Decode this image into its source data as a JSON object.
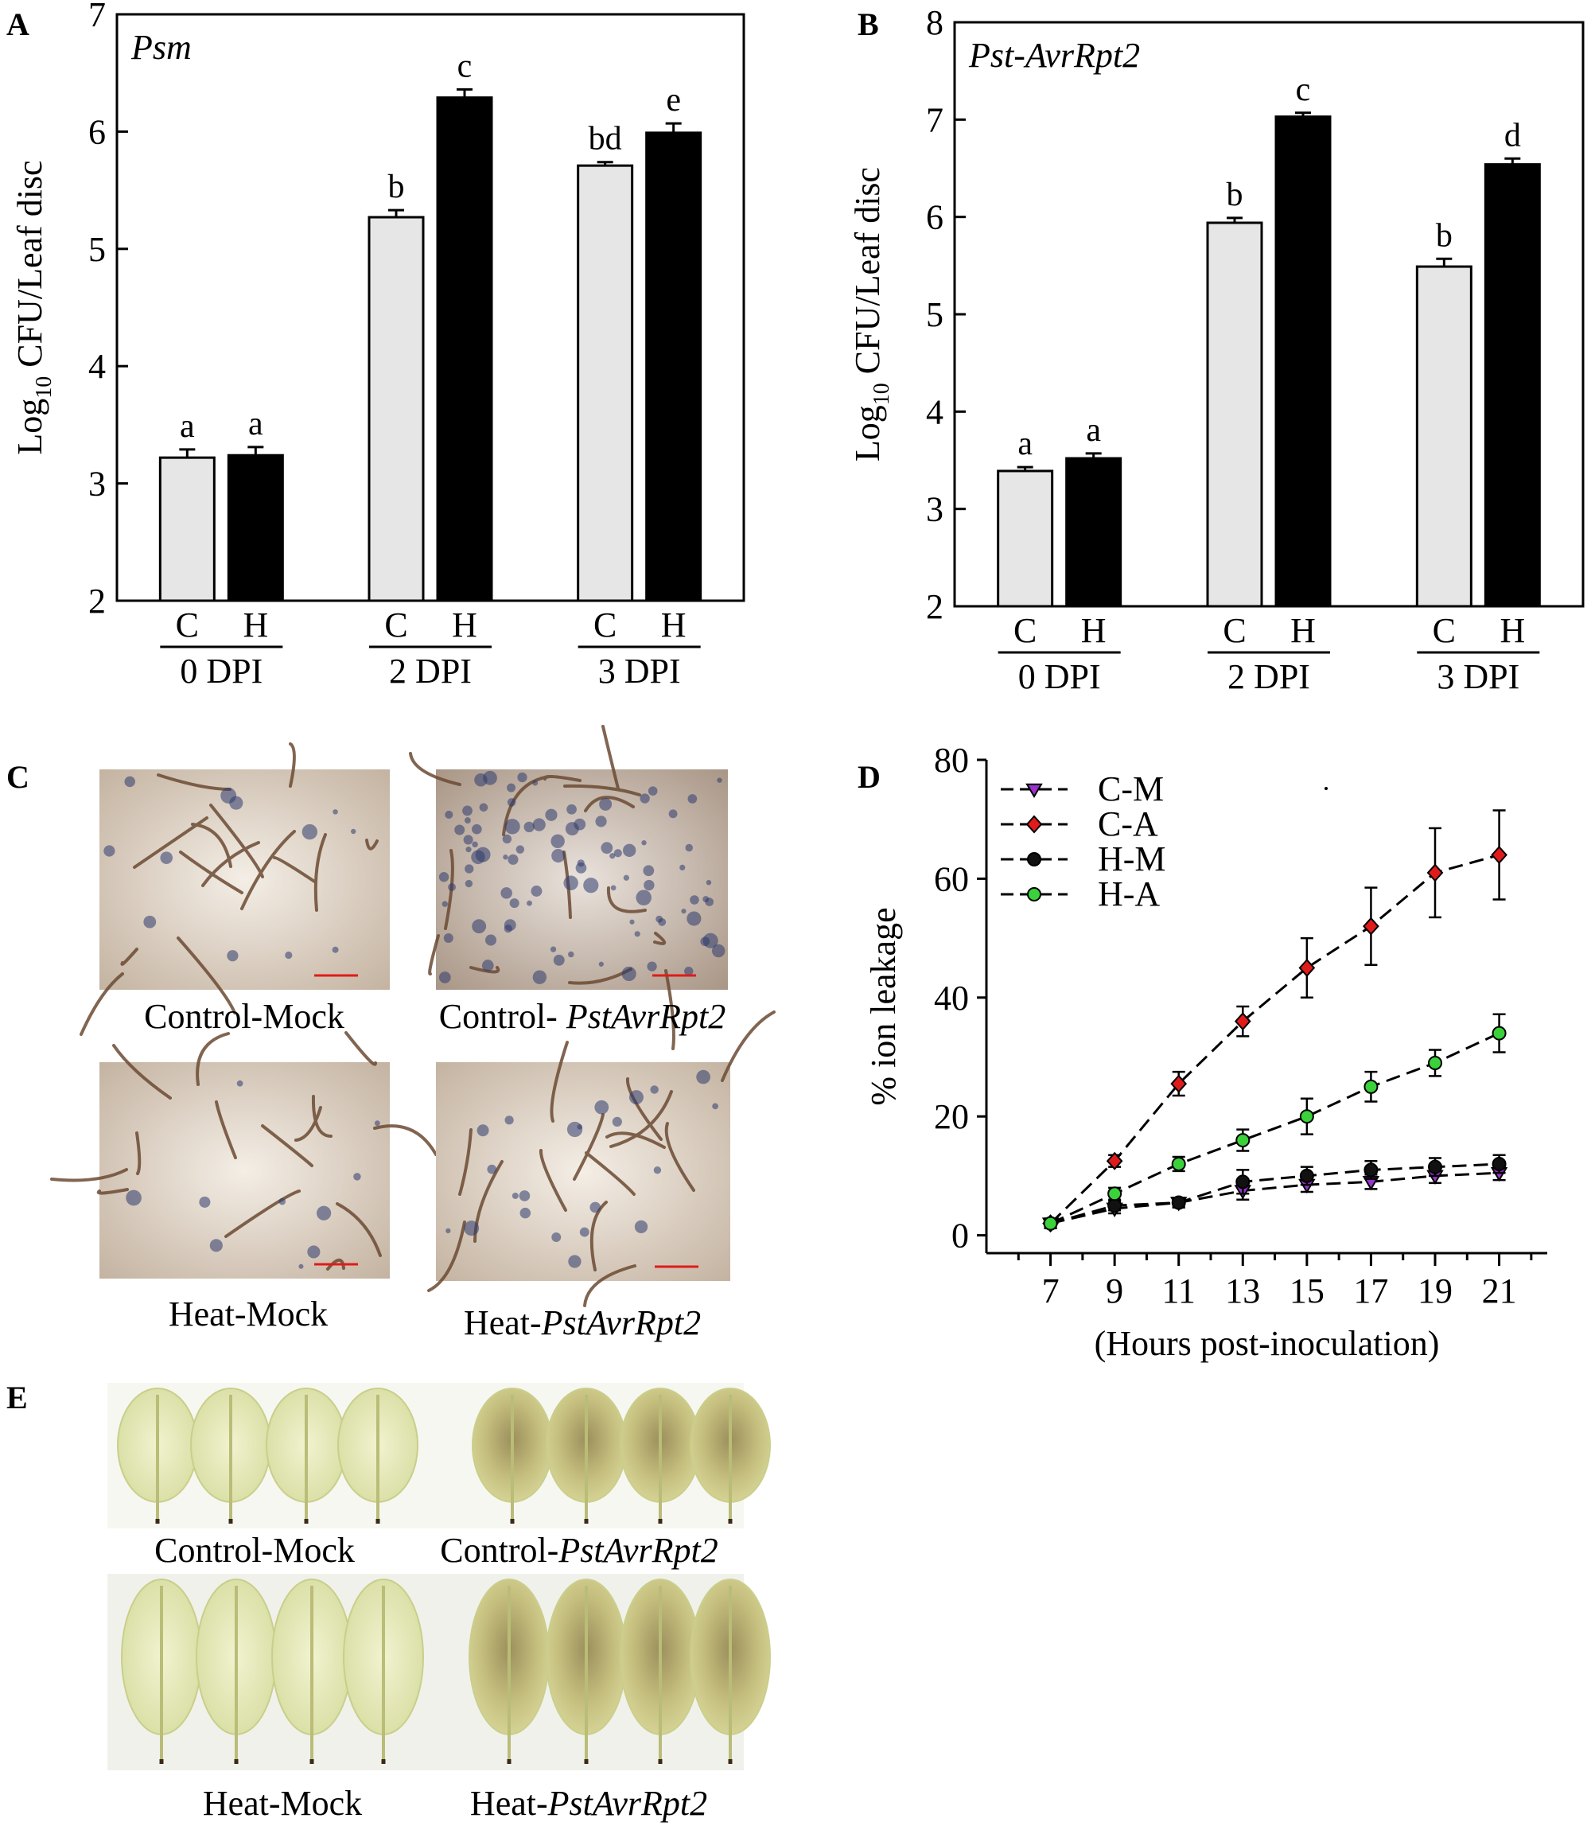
{
  "colors": {
    "control_bar": "#e6e6e6",
    "heat_bar": "#000000",
    "c_m": "#9933cc",
    "c_a": "#e01b1b",
    "h_m": "#111111",
    "h_a": "#3ad13a"
  },
  "chart_data": [
    {
      "panel": "A",
      "type": "bar",
      "annotation": "Psm",
      "ylabel_main": "Log",
      "ylabel_sub": "10",
      "ylabel_rest": " CFU/Leaf disc",
      "ylim": [
        2,
        7
      ],
      "yticks": [
        "2",
        "3",
        "4",
        "5",
        "6",
        "7"
      ],
      "groups": [
        {
          "name": "0 DPI",
          "bars": [
            {
              "label": "C",
              "value": 3.22,
              "error": 0.07,
              "letter": "a",
              "color": "#e6e6e6"
            },
            {
              "label": "H",
              "value": 3.24,
              "error": 0.07,
              "letter": "a",
              "color": "#000000"
            }
          ]
        },
        {
          "name": "2 DPI",
          "bars": [
            {
              "label": "C",
              "value": 5.27,
              "error": 0.06,
              "letter": "b",
              "color": "#e6e6e6"
            },
            {
              "label": "H",
              "value": 6.29,
              "error": 0.07,
              "letter": "c",
              "color": "#000000"
            }
          ]
        },
        {
          "name": "3 DPI",
          "bars": [
            {
              "label": "C",
              "value": 5.71,
              "error": 0.03,
              "letter": "bd",
              "color": "#e6e6e6"
            },
            {
              "label": "H",
              "value": 5.99,
              "error": 0.08,
              "letter": "e",
              "color": "#000000"
            }
          ]
        }
      ]
    },
    {
      "panel": "B",
      "type": "bar",
      "annotation": "Pst-AvrRpt2",
      "ylabel_main": "Log",
      "ylabel_sub": "10",
      "ylabel_rest": " CFU/Leaf disc",
      "ylim": [
        2,
        8
      ],
      "yticks": [
        "2",
        "3",
        "4",
        "5",
        "6",
        "7",
        "8"
      ],
      "groups": [
        {
          "name": "0 DPI",
          "bars": [
            {
              "label": "C",
              "value": 3.39,
              "error": 0.04,
              "letter": "a",
              "color": "#e6e6e6"
            },
            {
              "label": "H",
              "value": 3.52,
              "error": 0.05,
              "letter": "a",
              "color": "#000000"
            }
          ]
        },
        {
          "name": "2 DPI",
          "bars": [
            {
              "label": "C",
              "value": 5.94,
              "error": 0.05,
              "letter": "b",
              "color": "#e6e6e6"
            },
            {
              "label": "H",
              "value": 7.03,
              "error": 0.04,
              "letter": "c",
              "color": "#000000"
            }
          ]
        },
        {
          "name": "3 DPI",
          "bars": [
            {
              "label": "C",
              "value": 5.49,
              "error": 0.08,
              "letter": "b",
              "color": "#e6e6e6"
            },
            {
              "label": "H",
              "value": 6.54,
              "error": 0.06,
              "letter": "d",
              "color": "#000000"
            }
          ]
        }
      ]
    },
    {
      "panel": "D",
      "type": "line",
      "ylabel": "% ion leakage",
      "xlabel": "(Hours post-inoculation)",
      "x": [
        7,
        9,
        11,
        13,
        15,
        17,
        19,
        21
      ],
      "xticks": [
        "7",
        "9",
        "11",
        "13",
        "15",
        "17",
        "19",
        "21"
      ],
      "ylim": [
        -3,
        80
      ],
      "yticks": [
        "0",
        "20",
        "40",
        "60",
        "80"
      ],
      "legend_position": "top-left",
      "series": [
        {
          "name": "C-M",
          "marker": "triangle-down",
          "color": "#9933cc",
          "values": [
            2,
            4.5,
            5.5,
            7.5,
            8.5,
            9,
            10,
            10.5
          ],
          "errors": [
            0.8,
            0.8,
            0.8,
            1.5,
            1.2,
            1.2,
            1.2,
            1.2
          ]
        },
        {
          "name": "C-A",
          "marker": "diamond",
          "color": "#e01b1b",
          "values": [
            2,
            12.5,
            25.5,
            36,
            45,
            52,
            61,
            64
          ],
          "errors": [
            0.8,
            1,
            2,
            2.5,
            5,
            6.5,
            7.5,
            7.5
          ]
        },
        {
          "name": "H-M",
          "marker": "circle",
          "color": "#111111",
          "values": [
            2,
            5,
            5.5,
            9,
            10,
            11,
            11.5,
            12
          ],
          "errors": [
            0.8,
            0.8,
            0.8,
            2,
            1.5,
            1.5,
            1.5,
            1.5
          ]
        },
        {
          "name": "H-A",
          "marker": "circle",
          "color": "#3ad13a",
          "values": [
            2,
            7,
            12,
            16,
            20,
            25,
            29,
            34
          ],
          "errors": [
            0.8,
            1,
            1.2,
            1.8,
            3,
            2.5,
            2.2,
            3.2
          ]
        }
      ]
    }
  ],
  "panel_c": {
    "letter": "C",
    "captions": [
      {
        "plain": "Control-Mock",
        "italic": ""
      },
      {
        "plain": "Control- ",
        "italic": "PstAvrRpt2"
      },
      {
        "plain": "Heat-Mock",
        "italic": ""
      },
      {
        "plain": "Heat-",
        "italic": "PstAvrRpt2"
      }
    ]
  },
  "panel_e": {
    "letter": "E",
    "captions": [
      {
        "plain": "Control-Mock",
        "italic": ""
      },
      {
        "plain": "Control-",
        "italic": "PstAvrRpt2"
      },
      {
        "plain": "Heat-Mock",
        "italic": ""
      },
      {
        "plain": "Heat-",
        "italic": "PstAvrRpt2"
      }
    ]
  }
}
